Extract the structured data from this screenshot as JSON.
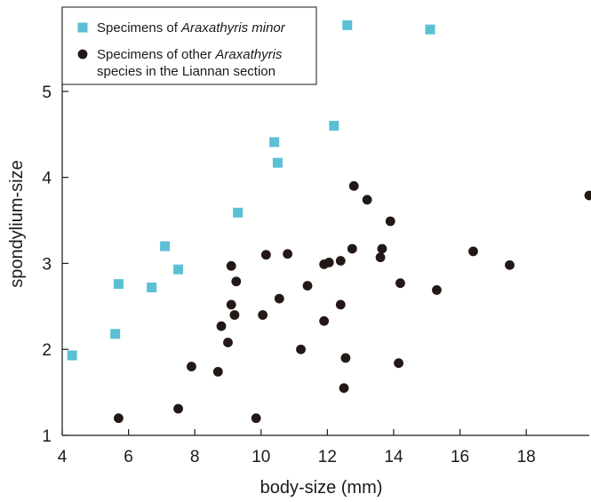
{
  "chart_data": {
    "type": "scatter",
    "title": "",
    "xlabel": "body-size (mm)",
    "ylabel": "spondylium-size",
    "xlim": [
      4,
      19.9
    ],
    "ylim": [
      1,
      5.98
    ],
    "xticks": [
      4,
      6,
      8,
      10,
      12,
      14,
      16,
      18
    ],
    "yticks": [
      1,
      2,
      3,
      4,
      5
    ],
    "grid": false,
    "legend_position": "top-left",
    "legend": [
      {
        "series": "minor",
        "marker": "square",
        "color": "#5bc0d4",
        "parts": [
          {
            "text": "Specimens of ",
            "italic": false
          },
          {
            "text": "Araxathyris minor",
            "italic": true
          }
        ]
      },
      {
        "series": "other",
        "marker": "circle",
        "color": "#231816",
        "parts": [
          {
            "text": "Specimens of other ",
            "italic": false
          },
          {
            "text": "Araxathyris",
            "italic": true
          }
        ],
        "line2": "species in the Liannan section"
      }
    ],
    "series": [
      {
        "key": "minor",
        "marker": "square",
        "color": "#5bc0d4",
        "points": [
          [
            4.3,
            1.93
          ],
          [
            5.6,
            2.18
          ],
          [
            5.7,
            2.76
          ],
          [
            6.7,
            2.72
          ],
          [
            7.1,
            3.2
          ],
          [
            7.5,
            2.93
          ],
          [
            9.3,
            3.59
          ],
          [
            10.4,
            4.41
          ],
          [
            10.5,
            4.17
          ],
          [
            12.2,
            4.6
          ],
          [
            12.6,
            5.77
          ],
          [
            15.1,
            5.72
          ]
        ]
      },
      {
        "key": "other",
        "marker": "circle",
        "color": "#231816",
        "points": [
          [
            5.7,
            1.2
          ],
          [
            7.5,
            1.31
          ],
          [
            7.9,
            1.8
          ],
          [
            8.7,
            1.74
          ],
          [
            8.8,
            2.27
          ],
          [
            9.0,
            2.08
          ],
          [
            9.1,
            2.97
          ],
          [
            9.1,
            2.52
          ],
          [
            9.2,
            2.4
          ],
          [
            9.25,
            2.79
          ],
          [
            9.85,
            1.2
          ],
          [
            10.05,
            2.4
          ],
          [
            10.15,
            3.1
          ],
          [
            10.55,
            2.59
          ],
          [
            10.8,
            3.11
          ],
          [
            11.2,
            2.0
          ],
          [
            11.4,
            2.74
          ],
          [
            11.9,
            2.99
          ],
          [
            11.9,
            2.33
          ],
          [
            12.05,
            3.01
          ],
          [
            12.4,
            3.03
          ],
          [
            12.4,
            2.52
          ],
          [
            12.5,
            1.55
          ],
          [
            12.55,
            1.9
          ],
          [
            12.75,
            3.17
          ],
          [
            12.8,
            3.9
          ],
          [
            13.2,
            3.74
          ],
          [
            13.6,
            3.07
          ],
          [
            13.65,
            3.17
          ],
          [
            13.9,
            3.49
          ],
          [
            14.15,
            1.84
          ],
          [
            14.2,
            2.77
          ],
          [
            15.3,
            2.69
          ],
          [
            16.4,
            3.14
          ],
          [
            17.5,
            2.98
          ],
          [
            19.9,
            3.79
          ]
        ]
      }
    ]
  }
}
